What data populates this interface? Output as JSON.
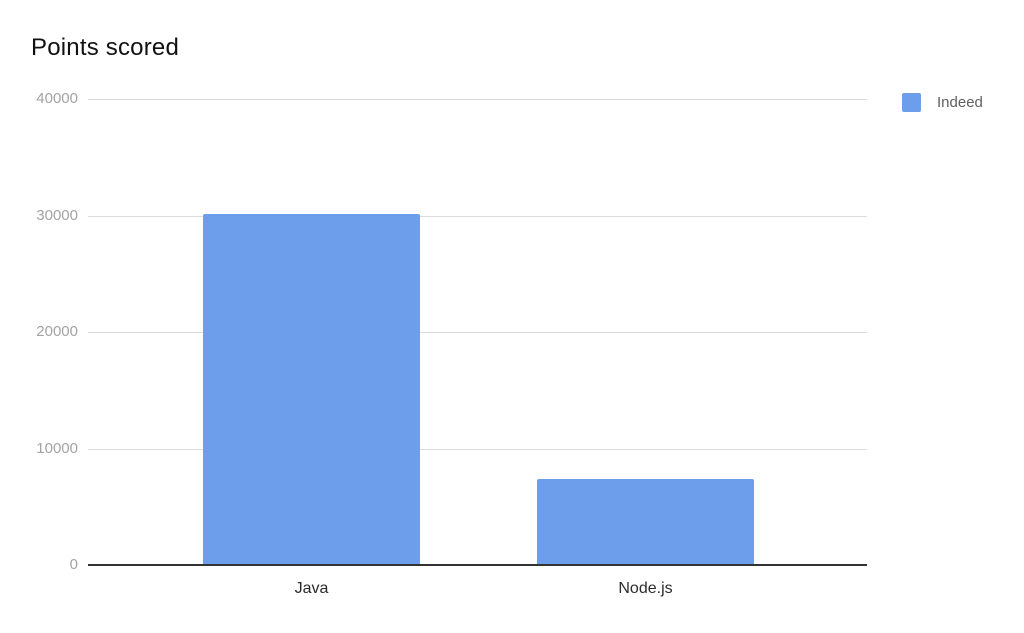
{
  "title": "Points scored",
  "legend": {
    "items": [
      {
        "label": "Indeed",
        "color": "#6d9eeb"
      }
    ]
  },
  "chart_data": {
    "type": "bar",
    "title": "Points scored",
    "categories": [
      "Java",
      "Node.js"
    ],
    "series": [
      {
        "name": "Indeed",
        "color": "#6d9eeb",
        "values": [
          30100,
          7400
        ]
      }
    ],
    "xlabel": "",
    "ylabel": "",
    "ylim": [
      0,
      40000
    ],
    "y_ticks": [
      0,
      10000,
      20000,
      30000,
      40000
    ],
    "grid": true,
    "legend_position": "top-right",
    "colors": {
      "bar": "#6d9eeb",
      "gridline": "#dcdcdc",
      "axis_line": "#333333",
      "tick_label": "#a3a3a3",
      "category_label": "#2b2b2b",
      "legend_label": "#5f5f5f",
      "title": "#111111"
    }
  }
}
